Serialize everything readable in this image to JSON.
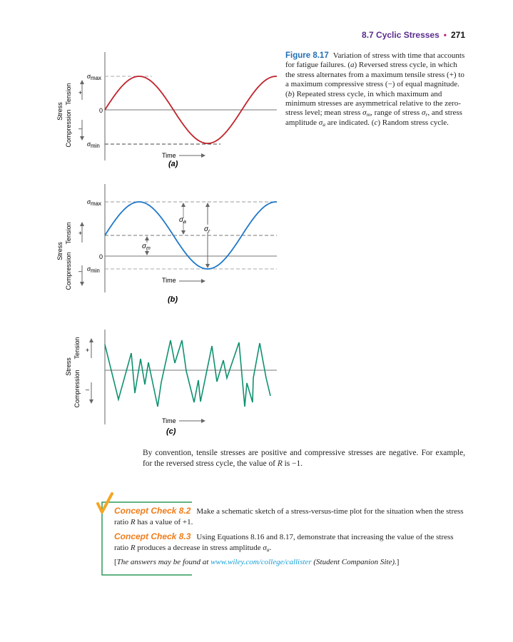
{
  "header": {
    "section": "8.7 Cyclic Stresses",
    "page": "271"
  },
  "caption": {
    "label": "Figure 8.17",
    "p1": "Variation of stress with time that accounts for fatigue failures. (",
    "a": "a",
    "p2": ") Reversed stress cycle, in which the stress alternates from a maximum tensile stress (+) to a maximum compressive stress (−) of equal magnitude. (",
    "b": "b",
    "p3": ") Repeated stress cycle, in which maximum and minimum stresses are asymmetrical relative to the zero-stress level; mean stress ",
    "sigma": "σ",
    "m": "m",
    "p4": ", range of stress ",
    "r": "r",
    "p5": ", and stress amplitude ",
    "asub": "a",
    "p6": " are indicated. (",
    "c": "c",
    "p7": ") Random stress cycle."
  },
  "figures": {
    "stress": "Stress",
    "tension": "Tension",
    "compression": "Compression",
    "plus": "+",
    "minus": "–",
    "zero": "0",
    "sigma": "σ",
    "max": "max",
    "min": "min",
    "sub_a": "a",
    "sub_r": "r",
    "sub_m": "m",
    "time": "Time",
    "panel_a": "(a)",
    "panel_b": "(b)",
    "panel_c": "(c)",
    "colors": {
      "a": "#c0232b",
      "b": "#1f78c8",
      "c": "#0f9170"
    }
  },
  "body": {
    "p1": "By convention, tensile stresses are positive and compressive stresses are negative. For example, for the reversed stress cycle, the value of ",
    "R": "R",
    "p2": " is −1."
  },
  "concept": {
    "c1_label": "Concept Check 8.2",
    "c1_p1": "Make a schematic sketch of a stress-versus-time plot for the situation when the stress ratio ",
    "R": "R",
    "c1_p2": " has a value of +1.",
    "c2_label": "Concept Check 8.3",
    "c2_p1": "Using Equations 8.16 and 8.17, demonstrate that increasing the value of the stress ratio ",
    "c2_p2": " produces a decrease in stress amplitude ",
    "sigma": "σ",
    "a": "a",
    "c2_p3": ".",
    "ans_open": "[",
    "ans_text": "The answers may be found at",
    "ans_link": "www.wiley.com/college/callister",
    "ans_tail": "(Student Companion Site).",
    "ans_close": "]",
    "colors": {
      "label": "#f07d1a",
      "border": "#2e9a5a",
      "check": "#f5a623",
      "link": "#1aa0d8"
    }
  }
}
